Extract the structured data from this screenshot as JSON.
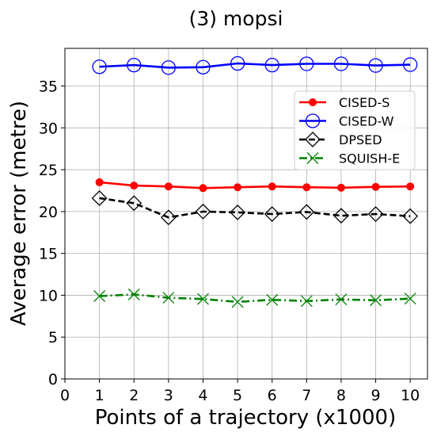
{
  "chart_data": {
    "type": "line",
    "title": "(3) mopsi",
    "xlabel": "Points of a trajectory (x1000)",
    "ylabel": "Average error (metre)",
    "xlim": [
      0,
      10.5
    ],
    "ylim": [
      0,
      39.5
    ],
    "xticks": [
      0,
      1,
      2,
      3,
      4,
      5,
      6,
      7,
      8,
      9,
      10
    ],
    "yticks": [
      0,
      5,
      10,
      15,
      20,
      25,
      30,
      35
    ],
    "grid": true,
    "legend_position": "upper-right",
    "x": [
      1,
      2,
      3,
      4,
      5,
      6,
      7,
      8,
      9,
      10
    ],
    "series": [
      {
        "name": "CISED-S",
        "color": "#ff0000",
        "marker": "filled-circle",
        "linestyle": "solid",
        "values": [
          23.5,
          23.1,
          23.0,
          22.8,
          22.9,
          23.0,
          22.9,
          22.85,
          22.95,
          23.0
        ]
      },
      {
        "name": "CISED-W",
        "color": "#0000ff",
        "marker": "open-circle",
        "linestyle": "solid",
        "values": [
          37.3,
          37.5,
          37.2,
          37.25,
          37.7,
          37.5,
          37.65,
          37.65,
          37.45,
          37.55
        ]
      },
      {
        "name": "DPSED",
        "color": "#000000",
        "marker": "open-diamond",
        "linestyle": "dashed",
        "values": [
          21.6,
          21.0,
          19.3,
          20.0,
          19.9,
          19.7,
          19.95,
          19.5,
          19.7,
          19.45
        ]
      },
      {
        "name": "SQUISH-E",
        "color": "#008000",
        "marker": "x",
        "linestyle": "dashdot",
        "values": [
          9.9,
          10.1,
          9.7,
          9.55,
          9.2,
          9.45,
          9.3,
          9.5,
          9.4,
          9.6
        ]
      }
    ]
  }
}
